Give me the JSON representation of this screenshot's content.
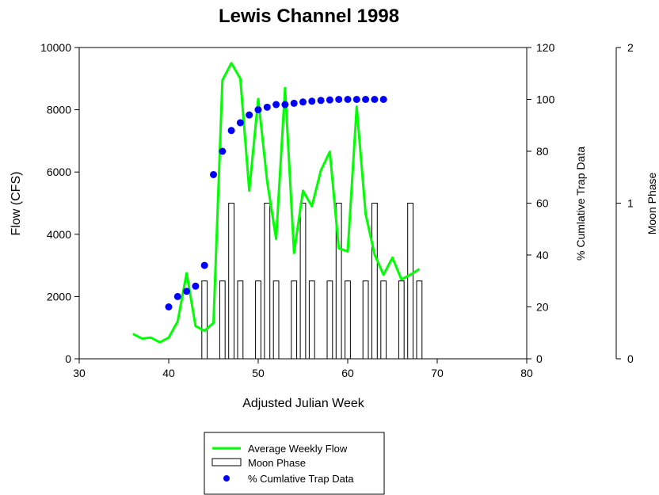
{
  "chart_data": {
    "type": "line",
    "title": "Lewis Channel 1998",
    "xlabel": "Adjusted Julian Week",
    "ylabel": "Flow (CFS)",
    "y2label": "% Cumlative Trap Data",
    "y3label": "Moon Phase",
    "xlim": [
      30,
      80
    ],
    "ylim": [
      0,
      10000
    ],
    "y2lim": [
      0,
      120
    ],
    "y3lim": [
      0,
      2
    ],
    "xticks": [
      30,
      40,
      50,
      60,
      70,
      80
    ],
    "yticks": [
      0,
      2000,
      4000,
      6000,
      8000,
      10000
    ],
    "y2ticks": [
      0,
      20,
      40,
      60,
      80,
      100,
      120
    ],
    "y3ticks": [
      0,
      1,
      2
    ],
    "legend_position": "bottom",
    "series": [
      {
        "name": "Average Weekly Flow",
        "type": "line",
        "axis": "left",
        "color": "#00ff00",
        "x": [
          36,
          37,
          38,
          39,
          40,
          41,
          42,
          43,
          44,
          45,
          46,
          47,
          48,
          49,
          50,
          51,
          52,
          53,
          54,
          55,
          56,
          57,
          58,
          59,
          60,
          61,
          62,
          63,
          64,
          65,
          66,
          67,
          68
        ],
        "y": [
          800,
          650,
          680,
          530,
          680,
          1200,
          2750,
          1050,
          900,
          1150,
          8950,
          9500,
          9000,
          5400,
          8350,
          5700,
          3850,
          8700,
          3400,
          5400,
          4900,
          6050,
          6650,
          3550,
          3450,
          8100,
          4650,
          3350,
          2700,
          3250,
          2550,
          2700,
          2880
        ]
      },
      {
        "name": "Moon Phase",
        "type": "bar",
        "axis": "right-outer",
        "color": "#ffffff",
        "x": [
          44,
          46,
          47,
          48,
          50,
          51,
          52,
          54,
          55,
          56,
          58,
          59,
          60,
          62,
          63,
          64,
          66,
          67,
          68
        ],
        "y": [
          0.5,
          0.5,
          1,
          0.5,
          0.5,
          1,
          0.5,
          0.5,
          1,
          0.5,
          0.5,
          1,
          0.5,
          0.5,
          1,
          0.5,
          0.5,
          1,
          0.5
        ]
      },
      {
        "name": "% Cumlative Trap Data",
        "type": "scatter",
        "axis": "right",
        "color": "#0000ff",
        "x": [
          40,
          41,
          42,
          43,
          44,
          45,
          46,
          47,
          48,
          49,
          50,
          51,
          52,
          53,
          54,
          55,
          56,
          57,
          58,
          59,
          60,
          61,
          62,
          63,
          64
        ],
        "y": [
          20,
          24,
          26,
          28,
          36,
          71,
          80,
          88,
          91,
          94,
          96,
          97,
          98,
          98,
          98.5,
          99,
          99.3,
          99.6,
          99.8,
          100,
          100,
          100,
          100,
          100,
          100
        ]
      }
    ]
  }
}
